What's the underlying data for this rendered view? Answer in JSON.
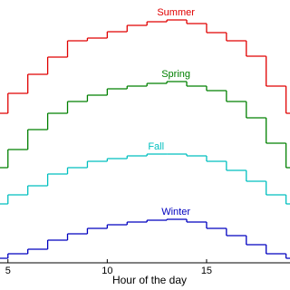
{
  "chart_data": {
    "type": "step",
    "xlabel": "Hour of the day",
    "x": [
      4,
      5,
      6,
      7,
      8,
      9,
      10,
      11,
      12,
      13,
      14,
      15,
      16,
      17,
      18,
      19
    ],
    "series": [
      {
        "name": "Summer",
        "color": "#e00000",
        "values": [
          165,
          187,
          208,
          227,
          245,
          248,
          255,
          262,
          266,
          268,
          264,
          254,
          245,
          228,
          195,
          165
        ]
      },
      {
        "name": "Spring",
        "color": "#008000",
        "values": [
          105,
          125,
          147,
          165,
          178,
          185,
          192,
          195,
          198,
          200,
          195,
          190,
          178,
          160,
          132,
          105
        ]
      },
      {
        "name": "Fall",
        "color": "#00bfbf",
        "values": [
          65,
          75,
          85,
          98,
          105,
          112,
          115,
          118,
          120,
          120,
          118,
          112,
          102,
          90,
          75,
          65
        ]
      },
      {
        "name": "Winter",
        "color": "#0000bf",
        "values": [
          5,
          10,
          15,
          25,
          32,
          38,
          42,
          45,
          47,
          48,
          45,
          38,
          30,
          20,
          10,
          5
        ]
      }
    ],
    "xlim": [
      4.6,
      19.2
    ],
    "xticks": [
      5,
      10,
      15
    ],
    "ylim": [
      0,
      290
    ]
  }
}
